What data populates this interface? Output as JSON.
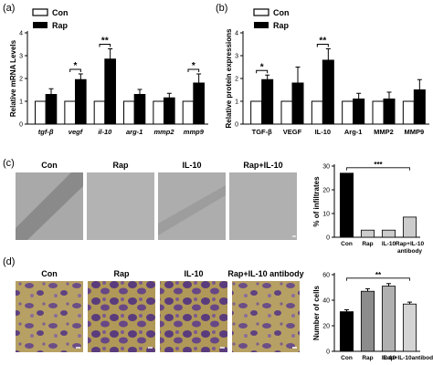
{
  "panels": {
    "a": {
      "label": "(a)"
    },
    "b": {
      "label": "(b)"
    },
    "c": {
      "label": "(c)",
      "image_titles": [
        "Con",
        "Rap",
        "IL-10",
        "Rap+IL-10"
      ],
      "antibody_caption": "antibody"
    },
    "d": {
      "label": "(d)",
      "image_titles": [
        "Con",
        "Rap",
        "IL-10",
        "Rap+IL-10 antibody"
      ]
    }
  },
  "legend": {
    "con": "Con",
    "rap": "Rap"
  },
  "colors": {
    "con": "#ffffff",
    "rap": "#000000",
    "con_d": "#000000",
    "rap_d": "#8c8c8c",
    "il10_d": "#b0b0b0",
    "combo_d": "#d4d4d4"
  },
  "chart_data": [
    {
      "id": "a",
      "type": "bar",
      "ylabel": "Relative mRNA Levels",
      "ylim": [
        0,
        4
      ],
      "yticks": [
        0,
        1,
        2,
        3,
        4
      ],
      "categories": [
        "tgf-β",
        "vegf",
        "il-10",
        "arg-1",
        "mmp2",
        "mmp9"
      ],
      "series": [
        {
          "name": "Con",
          "values": [
            1,
            1,
            1,
            1,
            1,
            1
          ],
          "errors": [
            0,
            0,
            0,
            0,
            0,
            0
          ]
        },
        {
          "name": "Rap",
          "values": [
            1.3,
            1.95,
            2.85,
            1.3,
            1.15,
            1.8
          ],
          "errors": [
            0.25,
            0.25,
            0.45,
            0.22,
            0.2,
            0.4
          ]
        }
      ],
      "significance": [
        {
          "category": 1,
          "mark": "*"
        },
        {
          "category": 2,
          "mark": "**"
        },
        {
          "category": 5,
          "mark": "*"
        }
      ]
    },
    {
      "id": "b",
      "type": "bar",
      "ylabel": "Relative protein expressions",
      "ylim": [
        0,
        4
      ],
      "yticks": [
        0,
        1,
        2,
        3,
        4
      ],
      "categories": [
        "TGF-β",
        "VEGF",
        "IL-10",
        "Arg-1",
        "MMP2",
        "MMP9"
      ],
      "series": [
        {
          "name": "Con",
          "values": [
            1,
            1,
            1,
            1,
            1,
            1
          ],
          "errors": [
            0,
            0,
            0,
            0,
            0,
            0
          ]
        },
        {
          "name": "Rap",
          "values": [
            1.95,
            1.8,
            2.8,
            1.1,
            1.1,
            1.5
          ],
          "errors": [
            0.2,
            0.7,
            0.5,
            0.25,
            0.3,
            0.45
          ]
        }
      ],
      "significance": [
        {
          "category": 0,
          "mark": "*"
        },
        {
          "category": 2,
          "mark": "**"
        }
      ]
    },
    {
      "id": "c",
      "type": "bar",
      "ylabel": "% of infiltrates",
      "ylim": [
        0,
        30
      ],
      "yticks": [
        0,
        10,
        20,
        30
      ],
      "categories": [
        "Con",
        "Rap",
        "IL-10",
        "Rap+IL-10"
      ],
      "values": [
        27,
        3,
        3,
        8.5
      ],
      "significance": [
        {
          "from": 0,
          "to": 3,
          "mark": "***"
        }
      ]
    },
    {
      "id": "d",
      "type": "bar",
      "ylabel": "Number of cells",
      "ylim": [
        0,
        60
      ],
      "yticks": [
        0,
        20,
        40,
        60
      ],
      "categories": [
        "Con",
        "Rap",
        "IL-10",
        "Rap+IL-10antibody"
      ],
      "values": [
        31,
        47,
        51,
        37
      ],
      "errors": [
        1.5,
        2,
        2,
        1.5
      ],
      "significance": [
        {
          "from": 0,
          "to": 3,
          "mark": "**"
        }
      ]
    }
  ]
}
